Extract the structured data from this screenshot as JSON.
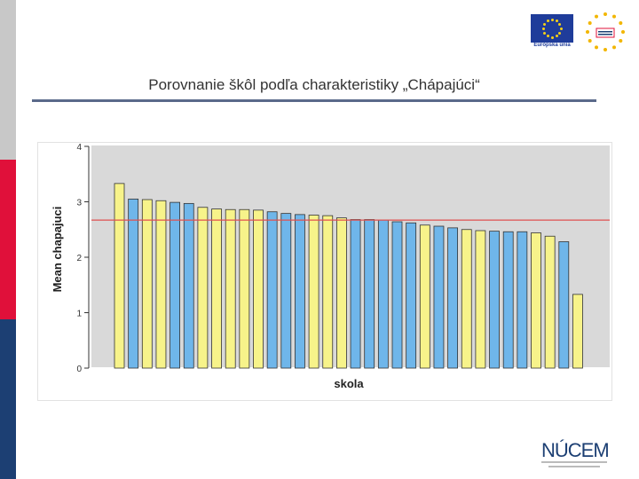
{
  "slide": {
    "title": "Porovnanie škôl podľa charakteristiky „Chápajúci“"
  },
  "logos": {
    "eu_caption": "Európska únia",
    "nucem": "NÚCEM"
  },
  "colors": {
    "bar_yellow": "#f7f38a",
    "bar_blue": "#6fb6ea",
    "mean_line": "#e05050",
    "plot_bg": "#d9d9d9"
  },
  "chart_data": {
    "type": "bar",
    "xlabel": "skola",
    "ylabel": "Mean chapajuci",
    "ylim": [
      0,
      4
    ],
    "yticks": [
      0,
      1,
      2,
      3,
      4
    ],
    "grid": false,
    "reference_line": 2.67,
    "values": [
      3.33,
      3.05,
      3.04,
      3.02,
      2.99,
      2.97,
      2.9,
      2.87,
      2.86,
      2.86,
      2.85,
      2.82,
      2.79,
      2.77,
      2.76,
      2.75,
      2.71,
      2.68,
      2.68,
      2.67,
      2.64,
      2.62,
      2.58,
      2.56,
      2.53,
      2.5,
      2.48,
      2.47,
      2.46,
      2.46,
      2.44,
      2.38,
      2.28,
      1.33
    ],
    "bar_colors": [
      "yellow",
      "blue",
      "yellow",
      "yellow",
      "blue",
      "blue",
      "yellow",
      "yellow",
      "yellow",
      "yellow",
      "yellow",
      "blue",
      "blue",
      "blue",
      "yellow",
      "yellow",
      "yellow",
      "blue",
      "blue",
      "blue",
      "blue",
      "blue",
      "yellow",
      "blue",
      "blue",
      "yellow",
      "yellow",
      "blue",
      "blue",
      "blue",
      "yellow",
      "yellow",
      "blue",
      "yellow"
    ]
  }
}
